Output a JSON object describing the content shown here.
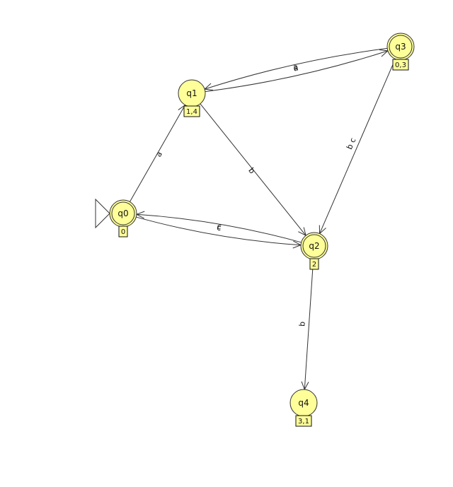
{
  "colors": {
    "state_fill": "#ffff99",
    "stroke": "#333333",
    "background": "#ffffff"
  },
  "diagram": {
    "start_state": "q0",
    "states": [
      {
        "id": "q0",
        "name": "q0",
        "tag": "0",
        "final": true
      },
      {
        "id": "q1",
        "name": "q1",
        "tag": "1,4",
        "final": false
      },
      {
        "id": "q2",
        "name": "q2",
        "tag": "2",
        "final": true
      },
      {
        "id": "q3",
        "name": "q3",
        "tag": "0,3",
        "final": true
      },
      {
        "id": "q4",
        "name": "q4",
        "tag": "3,1",
        "final": false
      }
    ],
    "transitions": [
      {
        "from": "q0",
        "to": "q1",
        "label": "a"
      },
      {
        "from": "q1",
        "to": "q3",
        "label": "a"
      },
      {
        "from": "q3",
        "to": "q1",
        "label": "a"
      },
      {
        "from": "q1",
        "to": "q2",
        "label": "b"
      },
      {
        "from": "q3",
        "to": "q2",
        "label": "b c"
      },
      {
        "from": "q0",
        "to": "q2",
        "label": "c"
      },
      {
        "from": "q2",
        "to": "q0",
        "label": "c"
      },
      {
        "from": "q2",
        "to": "q4",
        "label": "b"
      }
    ]
  }
}
